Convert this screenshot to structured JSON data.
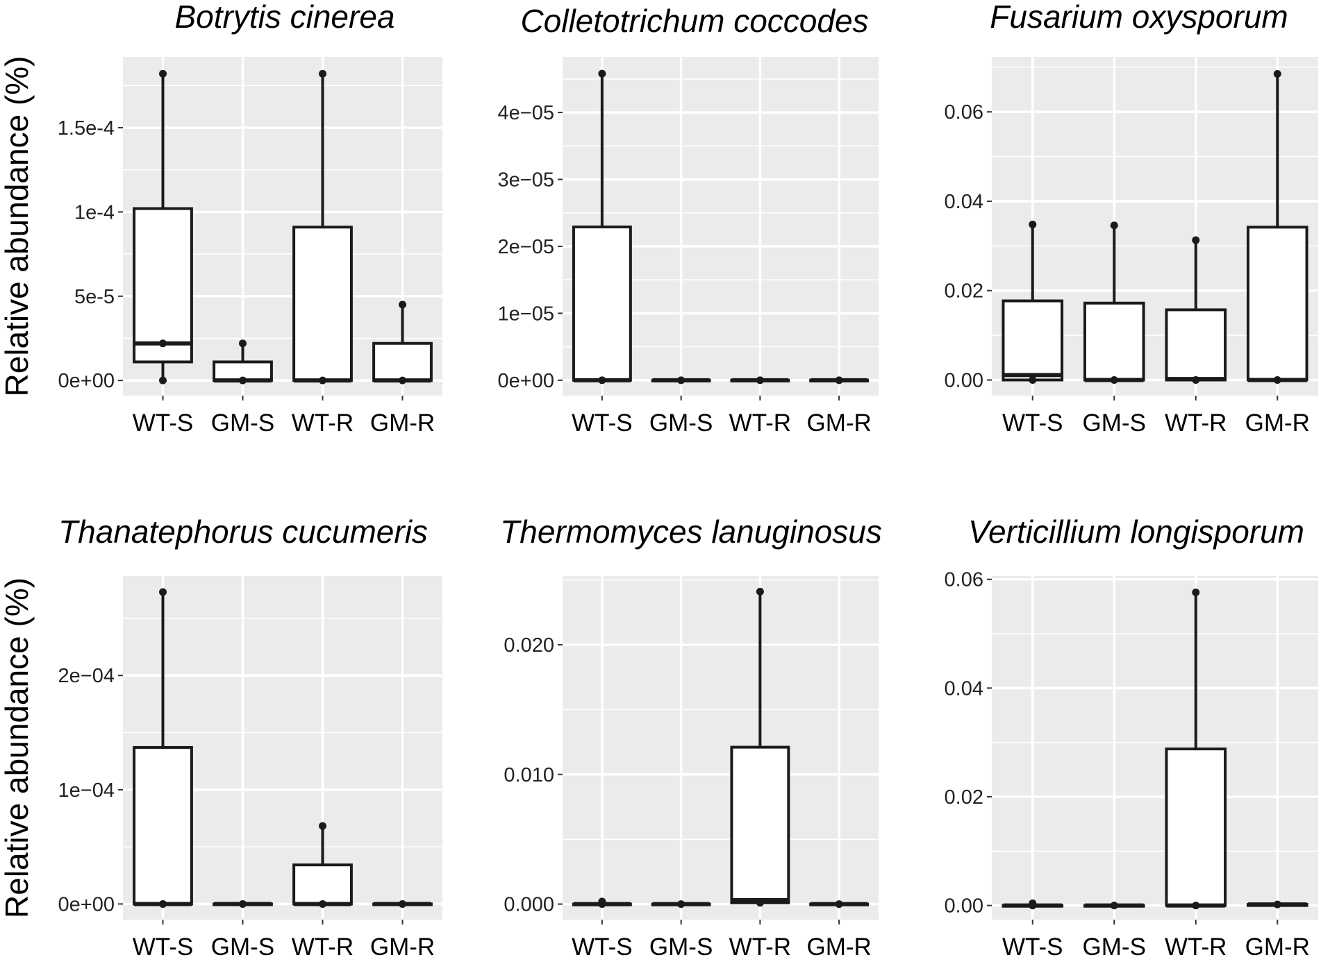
{
  "figure": {
    "ylabel": "Relative abundance (%)",
    "panel_background": "#ebebeb",
    "grid_color": "#ffffff",
    "box_fill": "#ffffff",
    "line_color": "#1a1a1a"
  },
  "chart_data": [
    {
      "type": "box",
      "title": "Botrytis cinerea",
      "ylabel": "Relative abundance (%)",
      "ylim": [
        -9e-06,
        0.000192
      ],
      "yticks": [
        0,
        5e-05,
        0.0001,
        0.00015
      ],
      "ytick_labels": [
        "0e+00",
        "5e-5",
        "1e-4",
        "1.5e-4"
      ],
      "categories": [
        "WT-S",
        "GM-S",
        "WT-R",
        "GM-R"
      ],
      "boxes": [
        {
          "min": 0,
          "q1": 1.1e-05,
          "median": 2.2e-05,
          "q3": 0.000102,
          "max": 0.000182,
          "points": [
            0,
            2.2e-05,
            0.000182
          ]
        },
        {
          "min": 0,
          "q1": 0,
          "median": 0,
          "q3": 1.1e-05,
          "max": 2.2e-05,
          "points": [
            0,
            2.2e-05
          ]
        },
        {
          "min": 0,
          "q1": 0,
          "median": 0,
          "q3": 9.1e-05,
          "max": 0.000182,
          "points": [
            0,
            0.000182
          ]
        },
        {
          "min": 0,
          "q1": 0,
          "median": 0,
          "q3": 2.2e-05,
          "max": 4.5e-05,
          "points": [
            0,
            4.5e-05
          ]
        }
      ]
    },
    {
      "type": "box",
      "title": "Colletotrichum coccodes",
      "ylabel": "",
      "ylim": [
        -2.3e-06,
        4.83e-05
      ],
      "yticks": [
        0,
        1e-05,
        2e-05,
        3e-05,
        4e-05
      ],
      "ytick_labels": [
        "0e+00",
        "1e−05",
        "2e−05",
        "3e−05",
        "4e−05"
      ],
      "categories": [
        "WT-S",
        "GM-S",
        "WT-R",
        "GM-R"
      ],
      "boxes": [
        {
          "min": 0,
          "q1": 0,
          "median": 0,
          "q3": 2.29e-05,
          "max": 4.58e-05,
          "points": [
            0,
            4.58e-05
          ]
        },
        {
          "min": 0,
          "q1": 0,
          "median": 0,
          "q3": 0,
          "max": 0,
          "points": [
            0
          ]
        },
        {
          "min": 0,
          "q1": 0,
          "median": 0,
          "q3": 0,
          "max": 0,
          "points": [
            0
          ]
        },
        {
          "min": 0,
          "q1": 0,
          "median": 0,
          "q3": 0,
          "max": 0,
          "points": [
            0
          ]
        }
      ]
    },
    {
      "type": "box",
      "title": "Fusarium oxysporum",
      "ylabel": "",
      "ylim": [
        -0.0035,
        0.0723
      ],
      "yticks": [
        0,
        0.02,
        0.04,
        0.06
      ],
      "ytick_labels": [
        "0.00",
        "0.02",
        "0.04",
        "0.06"
      ],
      "categories": [
        "WT-S",
        "GM-S",
        "WT-R",
        "GM-R"
      ],
      "boxes": [
        {
          "min": 0,
          "q1": 0,
          "median": 0.0011,
          "q3": 0.0177,
          "max": 0.0348,
          "points": [
            0,
            0.0348
          ]
        },
        {
          "min": 0,
          "q1": 0,
          "median": 0,
          "q3": 0.0172,
          "max": 0.0346,
          "points": [
            0,
            0.0346
          ]
        },
        {
          "min": 0,
          "q1": 0,
          "median": 0.0002,
          "q3": 0.0157,
          "max": 0.0313,
          "points": [
            0,
            0.0313
          ]
        },
        {
          "min": 0,
          "q1": 0,
          "median": 0,
          "q3": 0.0342,
          "max": 0.0685,
          "points": [
            0,
            0.0685
          ]
        }
      ]
    },
    {
      "type": "box",
      "title": "Thanatephorus cucumeris",
      "ylabel": "Relative abundance (%)",
      "ylim": [
        -1.37e-05,
        0.000287
      ],
      "yticks": [
        0,
        0.0001,
        0.0002
      ],
      "ytick_labels": [
        "0e+00",
        "1e−04",
        "2e−04"
      ],
      "categories": [
        "WT-S",
        "GM-S",
        "WT-R",
        "GM-R"
      ],
      "boxes": [
        {
          "min": 0,
          "q1": 0,
          "median": 0,
          "q3": 0.000137,
          "max": 0.000273,
          "points": [
            0,
            0.000273
          ]
        },
        {
          "min": 0,
          "q1": 0,
          "median": 0,
          "q3": 0,
          "max": 0,
          "points": [
            0
          ]
        },
        {
          "min": 0,
          "q1": 0,
          "median": 0,
          "q3": 3.42e-05,
          "max": 6.83e-05,
          "points": [
            0,
            6.83e-05
          ]
        },
        {
          "min": 0,
          "q1": 0,
          "median": 0,
          "q3": 0,
          "max": 0,
          "points": [
            0
          ]
        }
      ]
    },
    {
      "type": "box",
      "title": "Thermomyces lanuginosus",
      "ylabel": "",
      "ylim": [
        -0.0012,
        0.0253
      ],
      "yticks": [
        0,
        0.01,
        0.02
      ],
      "ytick_labels": [
        "0.000",
        "0.010",
        "0.020"
      ],
      "categories": [
        "WT-S",
        "GM-S",
        "WT-R",
        "GM-R"
      ],
      "boxes": [
        {
          "min": 0,
          "q1": 0,
          "median": 0,
          "q3": 0,
          "max": 0.0002,
          "points": [
            0,
            0.0002
          ]
        },
        {
          "min": 0,
          "q1": 0,
          "median": 0,
          "q3": 0,
          "max": 0,
          "points": [
            0
          ]
        },
        {
          "min": 0,
          "q1": 0.0001,
          "median": 0.0003,
          "q3": 0.0121,
          "max": 0.0241,
          "points": [
            0.0001,
            0.0241
          ]
        },
        {
          "min": 0,
          "q1": 0,
          "median": 0,
          "q3": 0,
          "max": 0,
          "points": [
            0
          ]
        }
      ]
    },
    {
      "type": "box",
      "title": "Verticillium longisporum",
      "ylabel": "",
      "ylim": [
        -0.0026,
        0.0606
      ],
      "yticks": [
        0,
        0.02,
        0.04,
        0.06
      ],
      "ytick_labels": [
        "0.00",
        "0.02",
        "0.04",
        "0.06"
      ],
      "categories": [
        "WT-S",
        "GM-S",
        "WT-R",
        "GM-R"
      ],
      "boxes": [
        {
          "min": 0,
          "q1": 0,
          "median": 0,
          "q3": 0,
          "max": 0.0004,
          "points": [
            0,
            0.0004
          ]
        },
        {
          "min": 0,
          "q1": 0,
          "median": 0,
          "q3": 0,
          "max": 0,
          "points": [
            0
          ]
        },
        {
          "min": 0,
          "q1": 0,
          "median": 0,
          "q3": 0.0288,
          "max": 0.0576,
          "points": [
            0,
            0.0576
          ]
        },
        {
          "min": 0,
          "q1": 0,
          "median": 0.0002,
          "q3": 0.0002,
          "max": 0.0002,
          "points": [
            0.0002
          ]
        }
      ]
    }
  ]
}
